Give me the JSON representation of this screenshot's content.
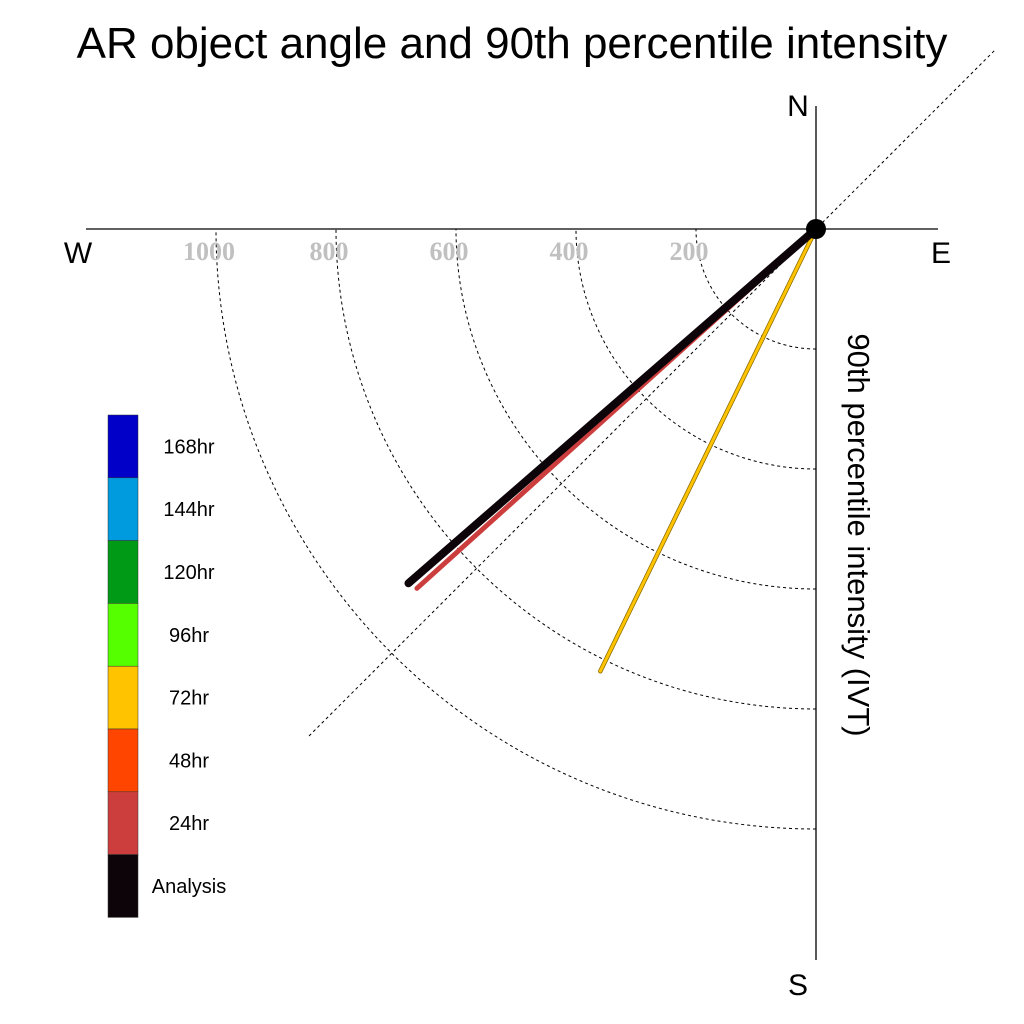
{
  "chart_data": {
    "type": "polar-line",
    "title": "AR object angle and 90th percentile intensity",
    "ylabel": "90th percentile intensity (IVT)",
    "compass": {
      "n": "N",
      "e": "E",
      "s": "S",
      "w": "W"
    },
    "radial_ticks": [
      200,
      400,
      600,
      800,
      1000
    ],
    "radial_tick_labels": [
      "200",
      "400",
      "600",
      "800",
      "1000"
    ],
    "rlim": [
      0,
      1200
    ],
    "grid": true,
    "diagonal_guide_deg": [
      45,
      225
    ],
    "series": [
      {
        "name": "Analysis",
        "angle_deg": 229,
        "intensity": 900,
        "color": "#0d0409"
      },
      {
        "name": "24hr",
        "angle_deg": 228,
        "intensity": 895,
        "color": "#cc3d3d"
      },
      {
        "name": "72hr",
        "angle_deg": 206,
        "intensity": 820,
        "color": "#ffc300"
      }
    ],
    "legend": [
      {
        "label": "168hr",
        "color": "#0000c8"
      },
      {
        "label": "144hr",
        "color": "#009ade"
      },
      {
        "label": "120hr",
        "color": "#009a16"
      },
      {
        "label": "96hr",
        "color": "#55ff00"
      },
      {
        "label": "72hr",
        "color": "#ffc300"
      },
      {
        "label": "48hr",
        "color": "#ff4500"
      },
      {
        "label": "24hr",
        "color": "#cc3d3d"
      },
      {
        "label": "Analysis",
        "color": "#0d0409"
      }
    ],
    "legend_position": "left"
  }
}
